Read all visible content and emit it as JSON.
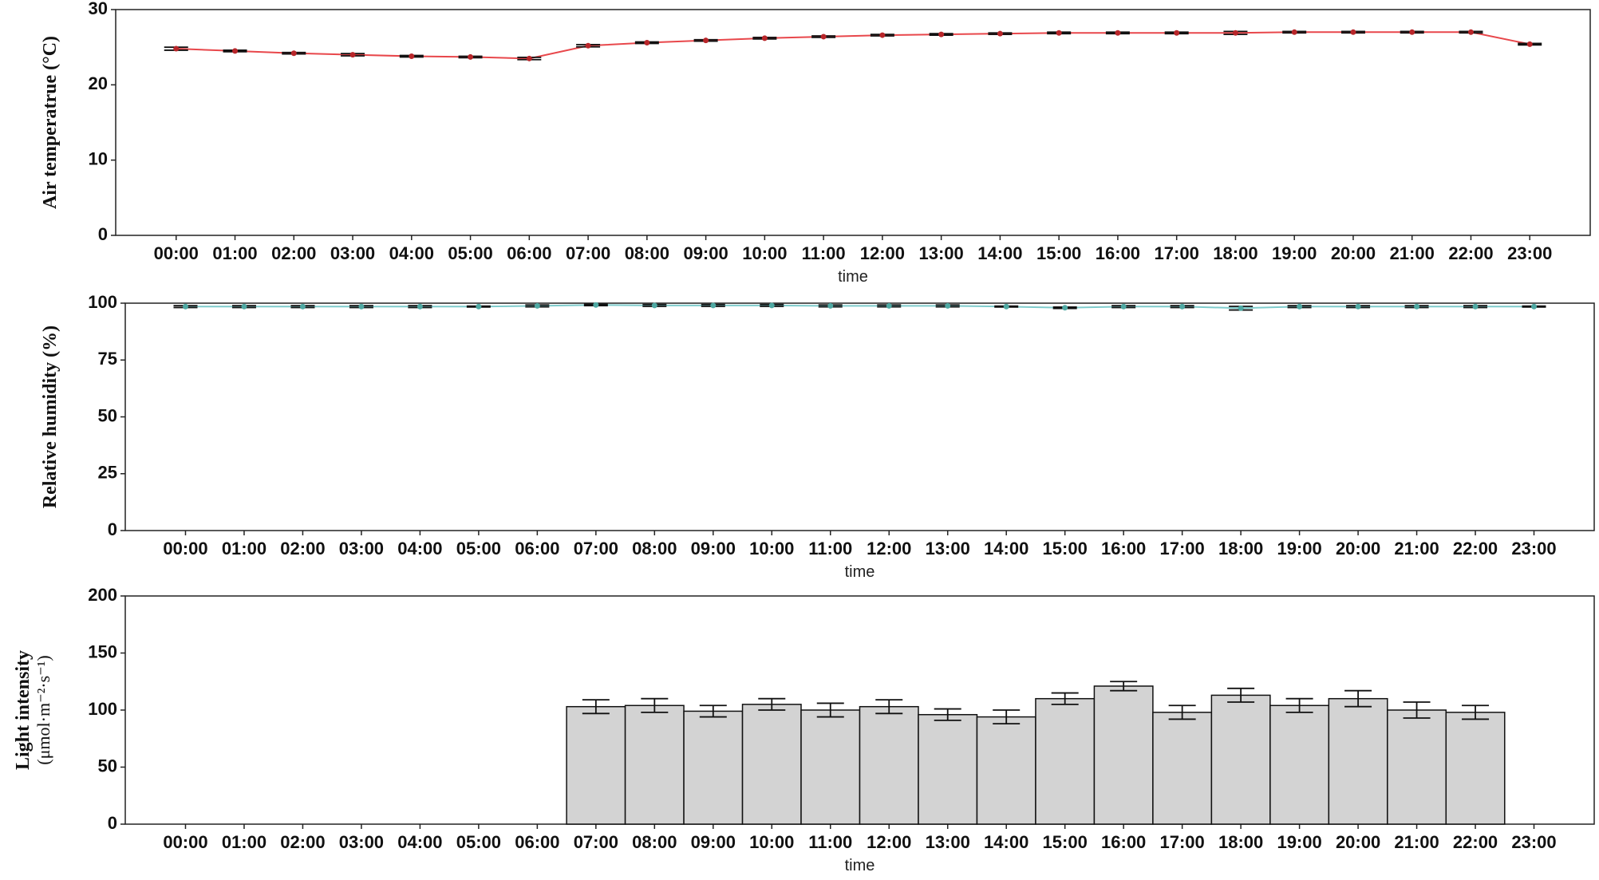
{
  "chart_data": [
    {
      "type": "line",
      "y_label": "Air temperatrue (°C)",
      "x_label": "time",
      "categories": [
        "00:00",
        "01:00",
        "02:00",
        "03:00",
        "04:00",
        "05:00",
        "06:00",
        "07:00",
        "08:00",
        "09:00",
        "10:00",
        "11:00",
        "12:00",
        "13:00",
        "14:00",
        "15:00",
        "16:00",
        "17:00",
        "18:00",
        "19:00",
        "20:00",
        "21:00",
        "22:00",
        "23:00"
      ],
      "values": [
        24.8,
        24.5,
        24.2,
        24.0,
        23.8,
        23.7,
        23.5,
        25.2,
        25.6,
        25.9,
        26.2,
        26.4,
        26.6,
        26.7,
        26.8,
        26.9,
        26.9,
        26.9,
        26.9,
        27.0,
        27.0,
        27.0,
        27.0,
        25.4
      ],
      "errors": [
        0.2,
        0.1,
        0.1,
        0.15,
        0.1,
        0.1,
        0.15,
        0.15,
        0.1,
        0.1,
        0.1,
        0.1,
        0.1,
        0.1,
        0.1,
        0.1,
        0.1,
        0.1,
        0.2,
        0.1,
        0.1,
        0.1,
        0.1,
        0.1
      ],
      "color": "#e8474b",
      "marker_color": "#b8262a",
      "ylim": [
        0,
        30
      ],
      "yticks": [
        0,
        10,
        20,
        30
      ]
    },
    {
      "type": "line",
      "y_label": "Relative humidity (%)",
      "x_label": "time",
      "categories": [
        "00:00",
        "01:00",
        "02:00",
        "03:00",
        "04:00",
        "05:00",
        "06:00",
        "07:00",
        "08:00",
        "09:00",
        "10:00",
        "11:00",
        "12:00",
        "13:00",
        "14:00",
        "15:00",
        "16:00",
        "17:00",
        "18:00",
        "19:00",
        "20:00",
        "21:00",
        "22:00",
        "23:00"
      ],
      "values": [
        98.5,
        98.5,
        98.5,
        98.5,
        98.5,
        98.5,
        98.8,
        99.2,
        99.0,
        99.0,
        99.0,
        98.8,
        98.8,
        98.8,
        98.5,
        98.0,
        98.5,
        98.5,
        97.8,
        98.5,
        98.5,
        98.5,
        98.5,
        98.5
      ],
      "errors": [
        0.4,
        0.4,
        0.4,
        0.4,
        0.4,
        0.2,
        0.4,
        0.3,
        0.4,
        0.4,
        0.4,
        0.4,
        0.4,
        0.4,
        0.2,
        0.3,
        0.4,
        0.4,
        0.8,
        0.4,
        0.4,
        0.4,
        0.4,
        0.2
      ],
      "color": "#7fcccc",
      "marker_color": "#4fa9a3",
      "ylim": [
        0,
        100
      ],
      "yticks": [
        0,
        25,
        50,
        75,
        100
      ]
    },
    {
      "type": "bar",
      "y_label": [
        "Light intensity",
        "(μmol·m⁻²·s⁻¹)"
      ],
      "x_label": "time",
      "categories": [
        "00:00",
        "01:00",
        "02:00",
        "03:00",
        "04:00",
        "05:00",
        "06:00",
        "07:00",
        "08:00",
        "09:00",
        "10:00",
        "11:00",
        "12:00",
        "13:00",
        "14:00",
        "15:00",
        "16:00",
        "17:00",
        "18:00",
        "19:00",
        "20:00",
        "21:00",
        "22:00",
        "23:00"
      ],
      "values": [
        null,
        null,
        null,
        null,
        null,
        null,
        null,
        103,
        104,
        99,
        105,
        100,
        103,
        96,
        94,
        110,
        121,
        98,
        113,
        104,
        110,
        100,
        98,
        null
      ],
      "errors": [
        null,
        null,
        null,
        null,
        null,
        null,
        null,
        6,
        6,
        5,
        5,
        6,
        6,
        5,
        6,
        5,
        4,
        6,
        6,
        6,
        7,
        7,
        6,
        null
      ],
      "color": "#d3d3d3",
      "ylim": [
        0,
        200
      ],
      "yticks": [
        0,
        50,
        100,
        150,
        200
      ]
    }
  ]
}
